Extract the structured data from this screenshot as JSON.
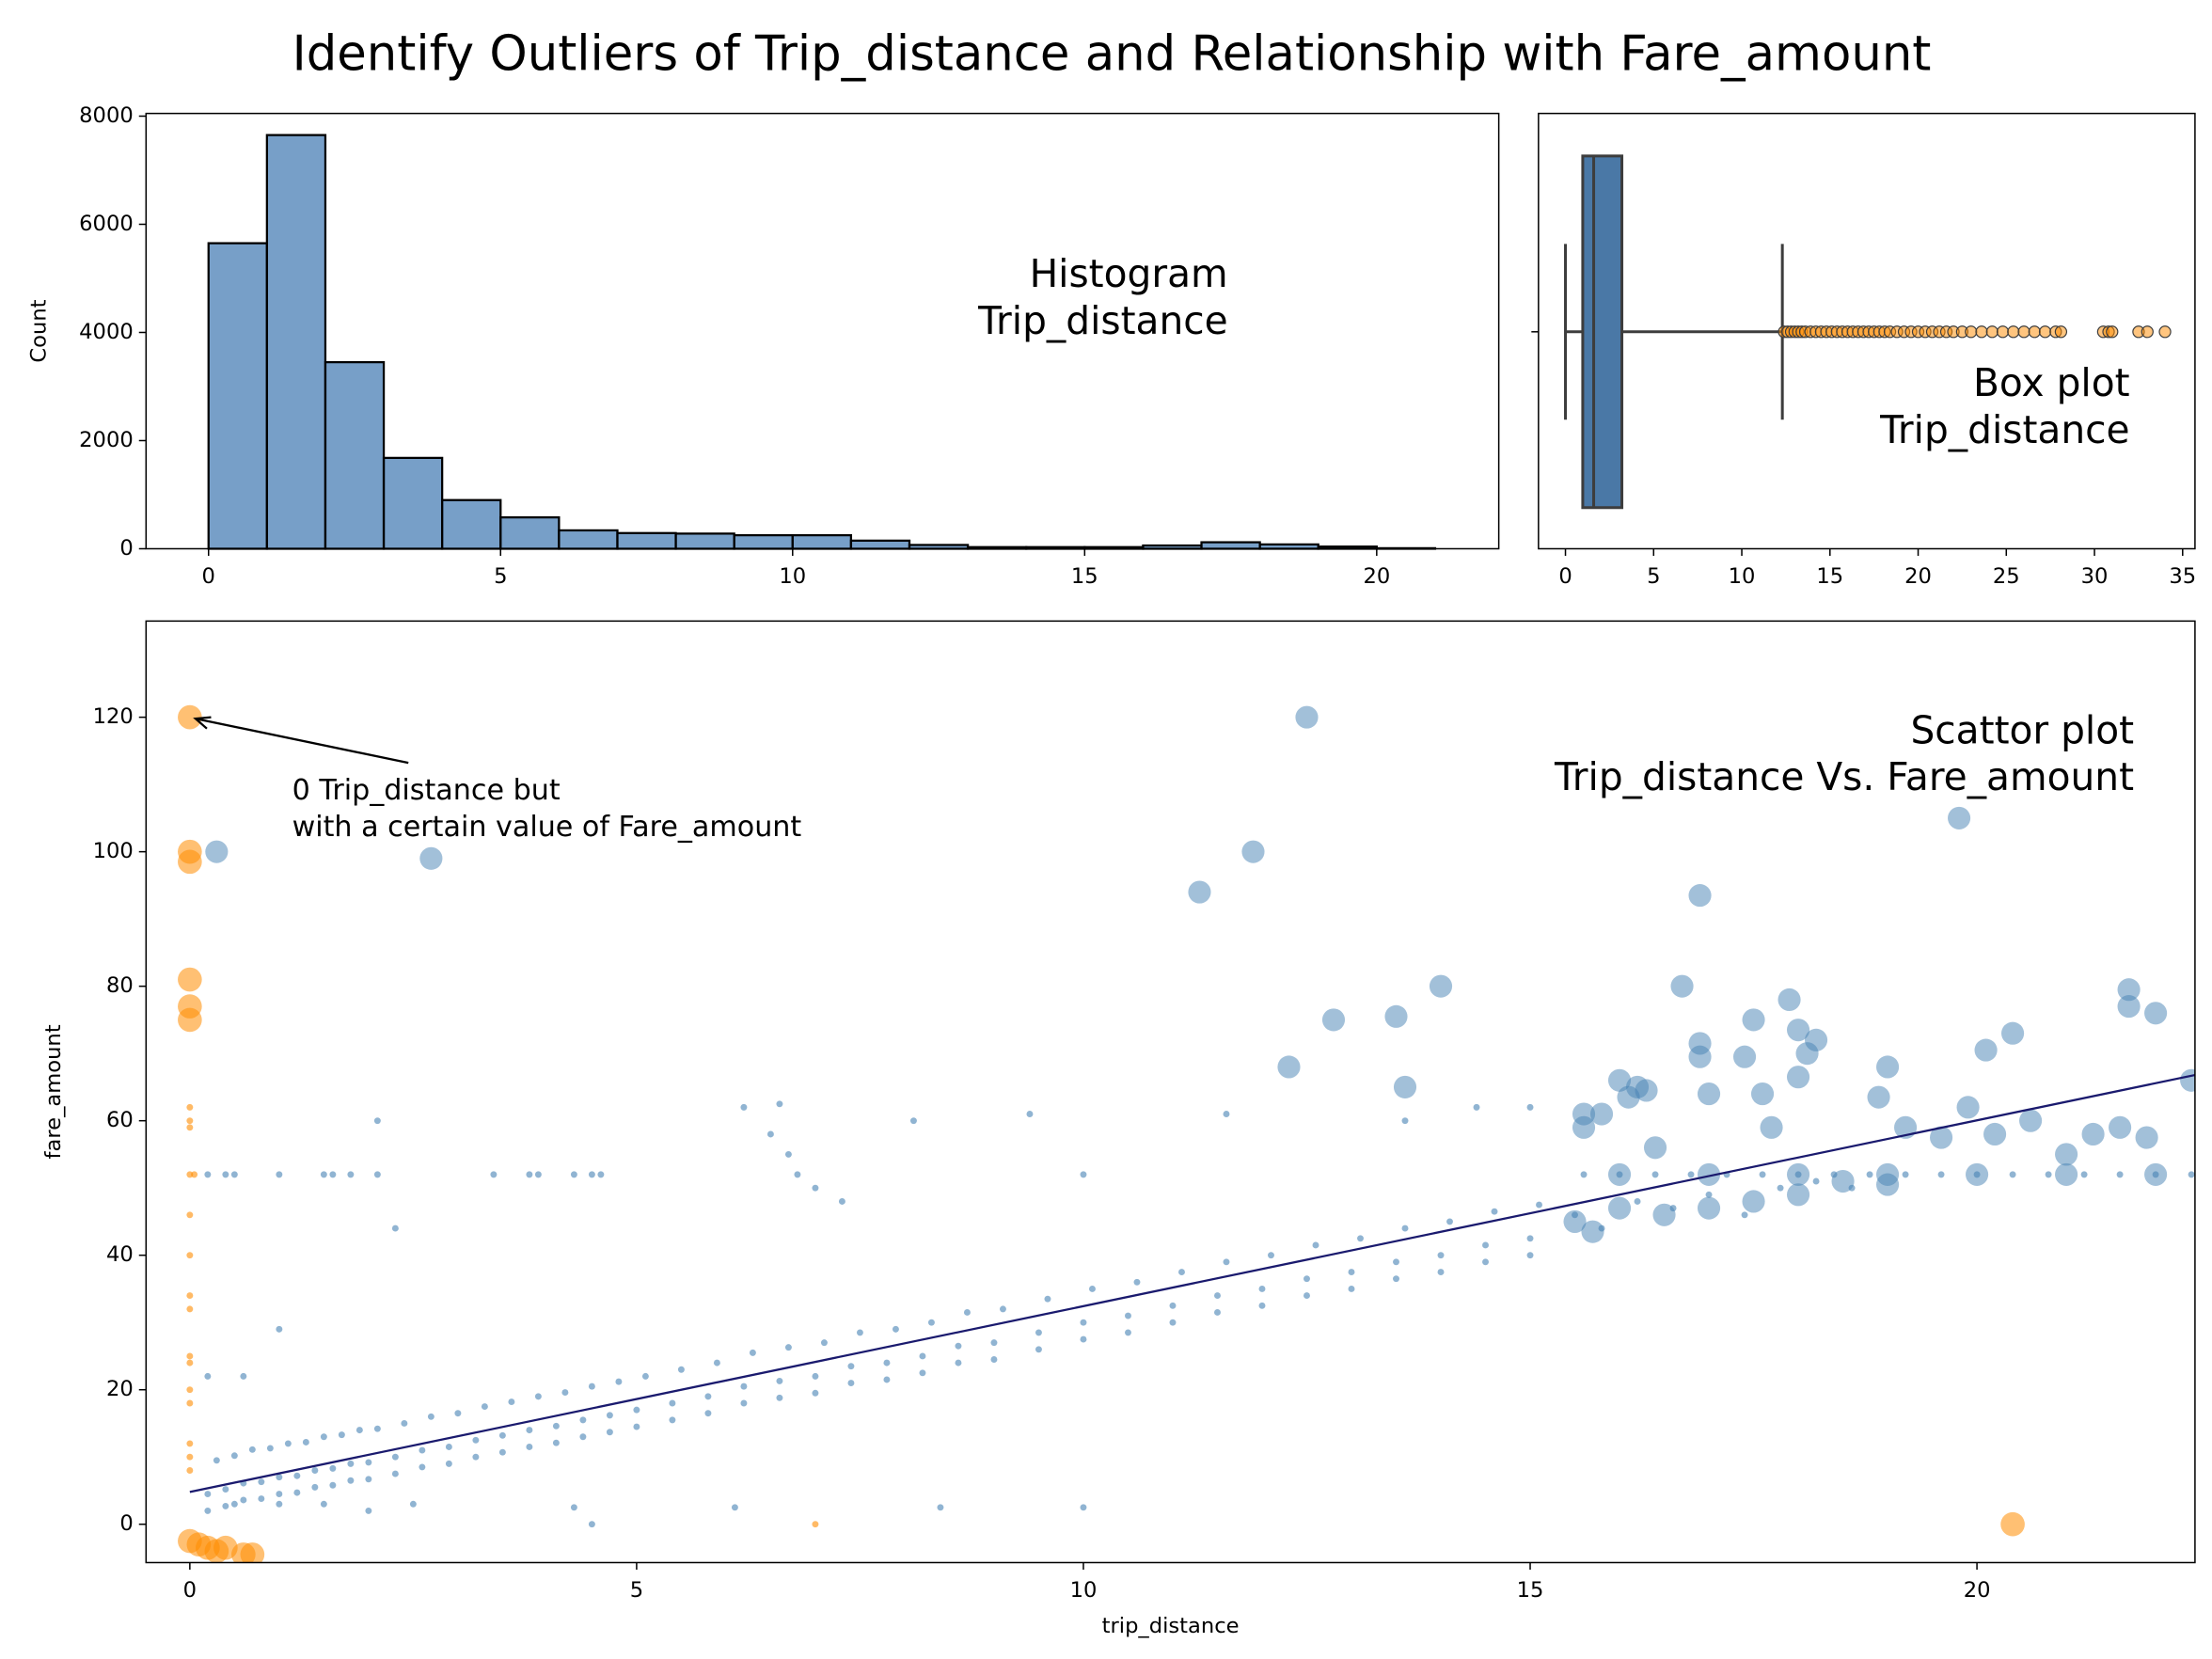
{
  "title": "Identify Outliers of Trip_distance and Relationship with Fare_amount",
  "chart_data": [
    {
      "type": "histogram",
      "ylabel": "Count",
      "annotation": [
        "Histogram",
        "Trip_distance"
      ],
      "color": "#4a7fb5",
      "bins": [
        0,
        1,
        2,
        3,
        4,
        5,
        6,
        7,
        8,
        9,
        10,
        11,
        12,
        13,
        14,
        15,
        16,
        17,
        18,
        19,
        20,
        21
      ],
      "values": [
        5650,
        7650,
        3450,
        1680,
        900,
        580,
        340,
        290,
        280,
        250,
        250,
        150,
        70,
        30,
        30,
        30,
        60,
        120,
        80,
        40,
        10
      ],
      "xlim": [
        -1.07,
        22.09
      ],
      "xticks": [
        0,
        5,
        10,
        15,
        20
      ],
      "ylim": [
        0,
        8050
      ],
      "yticks": [
        0,
        2000,
        4000,
        6000,
        8000
      ]
    },
    {
      "type": "box",
      "annotation": [
        "Box plot",
        "Trip_distance"
      ],
      "color": "#4a78a6",
      "outlier_color": "#ff8c00",
      "xlim": [
        -1.53,
        35.7
      ],
      "xticks": [
        0,
        5,
        10,
        15,
        20,
        25,
        30,
        35
      ],
      "whisker_low": 0,
      "q1": 0.98,
      "median": 1.6,
      "q3": 3.2,
      "whisker_high": 12.3,
      "outliers": [
        12.4,
        12.6,
        12.8,
        13.0,
        13.2,
        13.4,
        13.6,
        13.9,
        14.2,
        14.5,
        14.8,
        15.1,
        15.4,
        15.7,
        16.0,
        16.3,
        16.6,
        16.9,
        17.2,
        17.5,
        17.8,
        18.1,
        18.4,
        18.8,
        19.2,
        19.6,
        20.0,
        20.4,
        20.8,
        21.2,
        21.6,
        22.0,
        22.5,
        23.0,
        23.6,
        24.2,
        24.8,
        25.4,
        26.0,
        26.6,
        27.2,
        27.8,
        28.1,
        30.5,
        30.8,
        31.0,
        32.5,
        33.0,
        34.0
      ]
    },
    {
      "type": "scatter",
      "xlabel": "trip_distance",
      "ylabel": "fare_amount",
      "annotation": [
        "Scattor plot",
        "Trip_distance Vs. Fare_amount"
      ],
      "note": [
        "0 Trip_distance but",
        "with a certain value of Fare_amount"
      ],
      "xlim": [
        -0.49,
        22.44
      ],
      "xticks": [
        0,
        5,
        10,
        15,
        20
      ],
      "ylim": [
        -5.7,
        134.3
      ],
      "yticks": [
        0,
        20,
        40,
        60,
        80,
        100,
        120
      ],
      "series": [
        {
          "color": "#ff8c00",
          "size": 8.5,
          "alpha": 0.55,
          "x": [
            0,
            0,
            0,
            0,
            0,
            0,
            0,
            0.1,
            0.2,
            0.3,
            0.4,
            0.6,
            0.7,
            20.4
          ],
          "values": [
            120,
            100,
            98.5,
            81,
            77,
            75,
            -2.5,
            -3,
            -3.5,
            -4,
            -3.5,
            -4.5,
            -4.5,
            0
          ]
        },
        {
          "color": "#ff8c00",
          "size": 2.3,
          "alpha": 0.6,
          "x": [
            0,
            0,
            0,
            0,
            0,
            0,
            0,
            0,
            0,
            0,
            0,
            0,
            0,
            0,
            0,
            0.05,
            7.0
          ],
          "values": [
            62,
            60,
            59,
            52,
            46,
            40,
            34,
            32,
            25,
            24,
            20,
            18,
            12,
            10,
            8,
            52,
            0
          ]
        },
        {
          "color": "#4682b4",
          "size": 2.3,
          "alpha": 0.6,
          "x": [
            0.2,
            0.4,
            0.6,
            0.8,
            1.0,
            1.2,
            1.4,
            1.6,
            1.8,
            2.0,
            2.3,
            2.6,
            2.9,
            3.2,
            3.5,
            3.8,
            4.1,
            4.4,
            4.7,
            5.0,
            5.4,
            5.8,
            6.2,
            6.6,
            7.0,
            7.4,
            7.8,
            8.2,
            8.6,
            9.0,
            9.5,
            10.0,
            10.5,
            11.0,
            11.5,
            12.0,
            12.5,
            13.0,
            13.5,
            14.0,
            14.5,
            15.0,
            0.3,
            0.5,
            0.7,
            0.9,
            1.1,
            1.3,
            1.5,
            1.7,
            1.9,
            2.1,
            2.4,
            2.7,
            3.0,
            3.3,
            3.6,
            3.9,
            4.2,
            4.5,
            4.8,
            5.1,
            5.5,
            5.9,
            6.3,
            6.7,
            7.1,
            7.5,
            7.9,
            8.3,
            8.7,
            9.1,
            9.6,
            10.1,
            10.6,
            11.1,
            11.6,
            12.1,
            12.6,
            13.1,
            13.6,
            14.1,
            14.6,
            15.1,
            0.2,
            0.4,
            0.6,
            0.8,
            1.0,
            1.2,
            1.4,
            1.6,
            1.8,
            2.0,
            2.3,
            2.6,
            2.9,
            3.2,
            3.5,
            3.8,
            4.1,
            4.4,
            4.7,
            5.0,
            5.4,
            5.8,
            6.2,
            6.6,
            7.0,
            7.4,
            7.8,
            8.2,
            8.6,
            9.0,
            9.5,
            10.0,
            10.5,
            11.0,
            11.5,
            12.0,
            12.5,
            13.0,
            13.5,
            14.0,
            14.5,
            15.0,
            15.6,
            16.0,
            16.4,
            16.8,
            17.2,
            17.6,
            18.0,
            18.4,
            18.8,
            19.2,
            19.6,
            20.0,
            20.4,
            20.8,
            21.2,
            21.6,
            22.0,
            22.4,
            15.5,
            15.8,
            16.2,
            16.6,
            17.0,
            17.4,
            17.8,
            18.2,
            18.6,
            0.2,
            0.4,
            0.5,
            1.0,
            1.5,
            1.6,
            1.8,
            2.1,
            3.4,
            3.8,
            3.9,
            4.3,
            4.5,
            4.6,
            2.1,
            2.3,
            6.2,
            6.6,
            6.5,
            6.7,
            8.1,
            9.4,
            6.8,
            7.0,
            7.3,
            10.0,
            11.6,
            13.6,
            14.4,
            15.0,
            0.5,
            1.0,
            2.0,
            2.5,
            4.3,
            4.5,
            6.1,
            8.4,
            10.0,
            1.5,
            0.2,
            0.6,
            1.0
          ],
          "values": [
            4.5,
            5.2,
            6.1,
            6.3,
            7.0,
            7.2,
            8.0,
            8.3,
            9.0,
            9.2,
            10.0,
            11.0,
            11.5,
            12.5,
            13.2,
            14.0,
            14.6,
            15.5,
            16.2,
            17.0,
            18.0,
            19.0,
            20.5,
            21.3,
            22.0,
            23.5,
            24.0,
            25.0,
            26.5,
            27.0,
            28.5,
            30.0,
            31.0,
            32.5,
            34.0,
            35.0,
            36.5,
            37.5,
            39.0,
            40.0,
            41.5,
            42.5,
            9.5,
            10.2,
            11.1,
            11.3,
            12,
            12.2,
            13,
            13.3,
            14,
            14.2,
            15,
            16,
            16.5,
            17.5,
            18.2,
            19,
            19.6,
            20.5,
            21.2,
            22,
            23,
            24,
            25.5,
            26.3,
            27,
            28.5,
            29,
            30,
            31.5,
            32,
            33.5,
            35,
            36,
            37.5,
            39,
            40,
            41.5,
            42.5,
            44,
            45,
            46.5,
            47.5,
            2,
            2.7,
            3.6,
            3.8,
            4.5,
            4.7,
            5.5,
            5.8,
            6.5,
            6.7,
            7.5,
            8.5,
            9,
            10,
            10.7,
            11.5,
            12.1,
            13,
            13.7,
            14.5,
            15.5,
            16.5,
            18,
            18.8,
            19.5,
            21,
            21.5,
            22.5,
            24,
            24.5,
            26,
            27.5,
            28.5,
            30,
            31.5,
            32.5,
            34,
            35,
            36.5,
            37.5,
            39,
            40,
            52,
            52,
            52,
            52,
            52,
            52,
            52,
            52,
            52,
            52,
            52,
            52,
            52,
            52,
            52,
            52,
            52,
            52,
            46,
            44,
            48,
            47,
            49,
            46,
            50,
            51,
            50,
            52,
            52,
            52,
            52,
            52,
            52,
            52,
            52,
            52,
            52,
            52,
            52,
            52,
            52,
            60,
            44,
            62,
            62.5,
            58,
            55,
            60,
            61,
            52,
            50,
            48,
            52,
            61,
            60,
            62,
            62,
            3,
            3,
            2,
            3,
            2.5,
            0,
            2.5,
            2.5,
            2.5,
            3,
            22,
            22,
            29
          ]
        },
        {
          "color": "#4682b4",
          "size": 8,
          "alpha": 0.5,
          "x": [
            0.3,
            2.7,
            11.3,
            11.9,
            12.5,
            12.3,
            12.8,
            13.5,
            13.6,
            14.0,
            15.6,
            15.6,
            15.8,
            16.0,
            16.1,
            16.2,
            16.3,
            16.4,
            16.7,
            16.9,
            16.9,
            16.9,
            17.0,
            17.4,
            17.5,
            17.6,
            17.7,
            17.9,
            18.0,
            18.0,
            18.1,
            18.2,
            18.9,
            19.0,
            19.2,
            19.6,
            19.8,
            19.9,
            20.1,
            20.2,
            20.6,
            20.4,
            21.0,
            21.3,
            21.6,
            21.7,
            21.7,
            21.9,
            22.0,
            22.4,
            15.5,
            15.7,
            16.0,
            16.5,
            17.0,
            17.5,
            18.0,
            18.5,
            19.0,
            20.0,
            21.0,
            22.0,
            16.0,
            17.0,
            18.0,
            19.0
          ],
          "values": [
            100,
            99,
            94,
            100,
            120,
            68,
            75,
            75.5,
            65,
            80,
            61,
            59,
            61,
            66,
            63.5,
            65,
            64.5,
            56,
            80,
            93.5,
            71.5,
            69.5,
            64,
            69.5,
            75,
            64,
            59,
            78,
            73.5,
            66.5,
            70,
            72,
            63.5,
            68,
            59,
            57.5,
            105,
            62,
            70.5,
            58,
            60,
            73,
            55,
            58,
            59,
            77,
            79.5,
            57.5,
            76,
            66,
            45,
            43.5,
            47,
            46,
            47,
            48,
            49,
            51,
            50.5,
            52,
            52,
            52,
            52,
            52,
            52,
            52
          ]
        }
      ],
      "trend": {
        "color": "#1a1a6e",
        "x": [
          0,
          22.44
        ],
        "values": [
          4.8,
          66.8
        ]
      }
    }
  ]
}
